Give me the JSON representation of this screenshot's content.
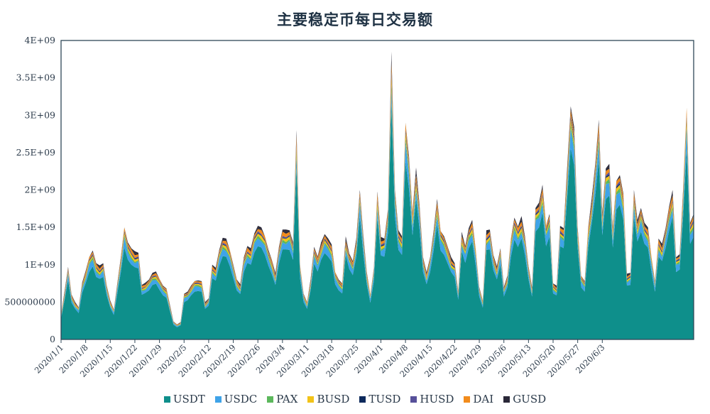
{
  "chart_data": {
    "type": "area",
    "stacked": true,
    "title": "主要稳定币每日交易额",
    "xlabel": "",
    "ylabel": "",
    "ylim": [
      0,
      4000000000
    ],
    "y_ticks": [
      "0",
      "500000000",
      "1E+09",
      "1.5E+09",
      "2E+09",
      "2.5E+09",
      "3E+09",
      "3.5E+09",
      "4E+09"
    ],
    "x_ticks": [
      "2020/1/1",
      "2020/1/8",
      "2020/1/15",
      "2020/1/22",
      "2020/1/29",
      "2020/2/5",
      "2020/2/12",
      "2020/2/19",
      "2020/2/26",
      "2020/3/4",
      "2020/3/11",
      "2020/3/18",
      "2020/3/25",
      "2020/4/1",
      "2020/4/8",
      "2020/4/15",
      "2020/4/22",
      "2020/4/29",
      "2020/5/6",
      "2020/5/13",
      "2020/5/20",
      "2020/5/27",
      "2020/6/3"
    ],
    "x_start": "2020/1/1",
    "x_end": "2020/6/6",
    "unit": "1E8 USD per day (values below are x1E8)",
    "legend_position": "bottom",
    "grid": false,
    "legend": [
      {
        "name": "USDT",
        "color": "#0e8f8b"
      },
      {
        "name": "USDC",
        "color": "#3fa3e8"
      },
      {
        "name": "PAX",
        "color": "#5cb85c"
      },
      {
        "name": "BUSD",
        "color": "#f2c318"
      },
      {
        "name": "TUSD",
        "color": "#0d2a5c"
      },
      {
        "name": "HUSD",
        "color": "#57509a"
      },
      {
        "name": "DAI",
        "color": "#f28c1c"
      },
      {
        "name": "GUSD",
        "color": "#2a2838"
      }
    ],
    "totals": [
      3.4,
      6.5,
      9.7,
      6.0,
      5.0,
      4.3,
      7.6,
      9.2,
      11.0,
      11.9,
      10.2,
      9.9,
      10.2,
      7.2,
      5.2,
      4.0,
      7.5,
      11.0,
      15.0,
      13.0,
      12.2,
      11.8,
      11.6,
      7.3,
      7.6,
      8.0,
      8.9,
      9.1,
      8.1,
      7.2,
      6.8,
      4.6,
      2.4,
      2.0,
      2.3,
      6.1,
      6.4,
      7.2,
      7.8,
      7.9,
      7.8,
      5.0,
      5.5,
      10.0,
      9.6,
      12.0,
      13.6,
      13.5,
      12.0,
      10.0,
      8.0,
      7.4,
      11.0,
      12.5,
      12.2,
      14.2,
      15.2,
      15.0,
      13.8,
      12.0,
      10.6,
      8.9,
      12.4,
      14.7,
      14.7,
      14.6,
      13.0,
      28.0,
      10.0,
      6.1,
      5.0,
      8.0,
      12.4,
      11.1,
      13.0,
      14.1,
      13.5,
      12.7,
      9.0,
      8.0,
      7.5,
      13.8,
      11.5,
      10.5,
      13.5,
      20.0,
      14.0,
      9.0,
      6.0,
      9.5,
      19.8,
      13.7,
      13.5,
      17.4,
      38.5,
      20.0,
      14.6,
      13.8,
      29.0,
      24.6,
      17.0,
      23.0,
      18.0,
      11.0,
      9.0,
      11.0,
      14.5,
      18.8,
      14.5,
      13.8,
      12.4,
      11.0,
      10.2,
      6.5,
      14.4,
      12.5,
      14.9,
      16.0,
      12.0,
      7.0,
      5.2,
      14.6,
      14.7,
      11.3,
      9.8,
      12.2,
      7.0,
      8.5,
      13.5,
      16.3,
      15.1,
      16.5,
      13.8,
      9.8,
      7.0,
      17.6,
      18.3,
      20.7,
      15.2,
      16.8,
      7.5,
      7.2,
      15.2,
      14.9,
      23.0,
      31.2,
      28.4,
      15.0,
      8.5,
      7.8,
      15.0,
      19.0,
      23.5,
      29.4,
      17.0,
      22.9,
      23.5,
      15.0,
      21.2,
      22.0,
      19.5,
      8.8,
      8.9,
      20.0,
      16.0,
      17.6,
      15.6,
      15.0,
      11.0,
      7.8,
      13.5,
      12.8,
      14.9,
      17.8,
      20.0,
      11.0,
      11.4,
      20.0,
      31.0,
      15.6,
      16.8
    ],
    "series_share": {
      "USDT": 0.82,
      "USDC": 0.07,
      "PAX": 0.02,
      "BUSD": 0.025,
      "TUSD": 0.008,
      "HUSD": 0.012,
      "DAI": 0.03,
      "GUSD": 0.015
    },
    "annotations": []
  }
}
